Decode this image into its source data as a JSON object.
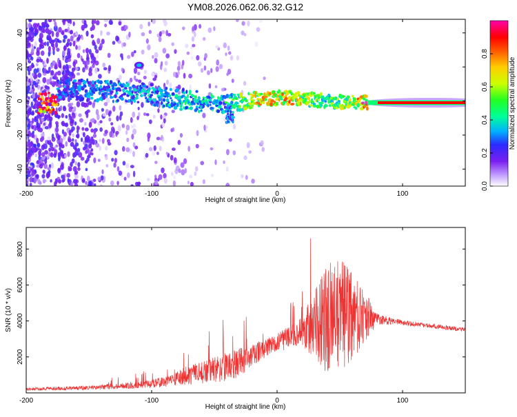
{
  "title": "YM08.2026.062.06.32.G12",
  "colors": {
    "snr_line": "#ee3333",
    "track_hi": "#ff2020",
    "track_mid": "#22ee88",
    "cloud": "#6a1ee6",
    "faint": "#cfb6f5"
  },
  "chart_data": [
    {
      "id": "spectrogram",
      "type": "heatmap",
      "title": "YM08.2026.062.06.32.G12",
      "xlabel": "Height of straight line (km)",
      "ylabel": "Frequency (Hz)",
      "xlim": [
        -200,
        150
      ],
      "ylim": [
        -50,
        48
      ],
      "xticks": [
        -200,
        -100,
        0,
        100
      ],
      "yticks": [
        -40,
        -20,
        0,
        20,
        40
      ],
      "colorbar": {
        "label": "Normalized spectral amplitude",
        "range": [
          0.0,
          1.0
        ],
        "ticks": [
          0.0,
          0.2,
          0.4,
          0.6,
          0.8
        ],
        "tick_labels": [
          "0.0",
          "0.2",
          "0.4",
          "0.6",
          "0.8"
        ]
      },
      "ridge": {
        "description_points": [
          {
            "x": -175,
            "freq": 7,
            "amp": 0.3
          },
          {
            "x": -110,
            "freq": 5,
            "amp": 0.35
          },
          {
            "x": -80,
            "freq": 1,
            "amp": 0.4
          },
          {
            "x": -40,
            "freq": -2,
            "amp": 0.45
          },
          {
            "x": -20,
            "freq": 1,
            "amp": 0.7
          },
          {
            "x": 10,
            "freq": 2,
            "amp": 0.75
          },
          {
            "x": 40,
            "freq": 0,
            "amp": 0.5
          },
          {
            "x": 70,
            "freq": -1,
            "amp": 0.8
          },
          {
            "x": 150,
            "freq": -1,
            "amp": 1.0
          }
        ],
        "blob": {
          "x": -110,
          "freq": 21,
          "amp": 0.35
        }
      }
    },
    {
      "id": "snr",
      "type": "line",
      "xlabel": "Height of straight line (km)",
      "ylabel": "SNR (10 * v/v)",
      "xlim": [
        -200,
        150
      ],
      "ylim": [
        0,
        9200
      ],
      "xticks": [
        -200,
        -100,
        0,
        100
      ],
      "yticks": [
        2000,
        4000,
        6000,
        8000
      ],
      "series": [
        {
          "name": "SNR",
          "envelope": [
            {
              "x": -200,
              "base": 200,
              "amp": 80
            },
            {
              "x": -150,
              "base": 280,
              "amp": 120
            },
            {
              "x": -110,
              "base": 450,
              "amp": 200
            },
            {
              "x": -85,
              "base": 650,
              "amp": 300
            },
            {
              "x": -75,
              "base": 900,
              "amp": 500
            },
            {
              "x": -50,
              "base": 1300,
              "amp": 700
            },
            {
              "x": -35,
              "base": 1500,
              "amp": 900
            },
            {
              "x": -30,
              "base": 1700,
              "amp": 800
            },
            {
              "x": -20,
              "base": 2100,
              "amp": 600
            },
            {
              "x": 0,
              "base": 2800,
              "amp": 500
            },
            {
              "x": 20,
              "base": 3400,
              "amp": 800
            },
            {
              "x": 30,
              "base": 3800,
              "amp": 2000
            },
            {
              "x": 40,
              "base": 4200,
              "amp": 3200
            },
            {
              "x": 55,
              "base": 4300,
              "amp": 3000
            },
            {
              "x": 70,
              "base": 4200,
              "amp": 1500
            },
            {
              "x": 80,
              "base": 4100,
              "amp": 300
            },
            {
              "x": 100,
              "base": 3900,
              "amp": 150
            },
            {
              "x": 150,
              "base": 3500,
              "amp": 120
            }
          ]
        }
      ]
    }
  ]
}
